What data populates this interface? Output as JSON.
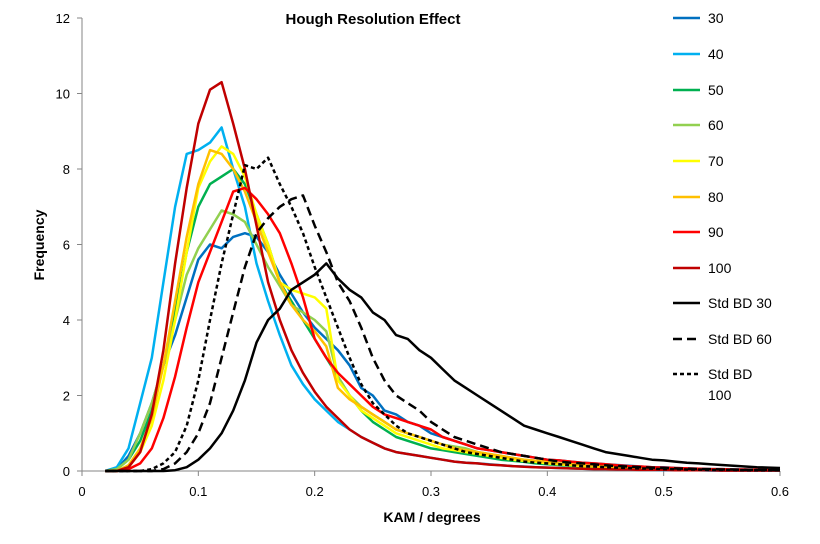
{
  "chart_data": {
    "type": "line",
    "title": "Hough Resolution Effect",
    "xlabel": "KAM / degrees",
    "ylabel": "Frequency",
    "xlim": [
      0,
      0.6
    ],
    "ylim": [
      0,
      12
    ],
    "xticks": [
      "0",
      "0.1",
      "0.2",
      "0.3",
      "0.4",
      "0.5",
      "0.6"
    ],
    "yticks": [
      "0",
      "2",
      "4",
      "6",
      "8",
      "10",
      "12"
    ],
    "grid": false,
    "legend_position": "right",
    "x": [
      0.02,
      0.03,
      0.04,
      0.05,
      0.06,
      0.07,
      0.08,
      0.09,
      0.1,
      0.11,
      0.12,
      0.13,
      0.14,
      0.15,
      0.16,
      0.17,
      0.18,
      0.19,
      0.2,
      0.21,
      0.22,
      0.23,
      0.24,
      0.25,
      0.26,
      0.27,
      0.28,
      0.29,
      0.3,
      0.31,
      0.32,
      0.33,
      0.34,
      0.35,
      0.36,
      0.37,
      0.38,
      0.39,
      0.4,
      0.41,
      0.42,
      0.43,
      0.44,
      0.45,
      0.46,
      0.47,
      0.48,
      0.49,
      0.5,
      0.51,
      0.52,
      0.53,
      0.54,
      0.55,
      0.56,
      0.57,
      0.58,
      0.59,
      0.6
    ],
    "series": [
      {
        "name": "30",
        "color": "#0070C0",
        "dash": "solid",
        "values": [
          0,
          0.05,
          0.4,
          1.0,
          1.8,
          2.8,
          3.6,
          4.6,
          5.6,
          6.0,
          5.9,
          6.2,
          6.3,
          6.2,
          5.8,
          5.2,
          4.7,
          4.2,
          3.8,
          3.5,
          3.2,
          2.8,
          2.2,
          2.0,
          1.6,
          1.5,
          1.3,
          1.2,
          1.0,
          0.9,
          0.8,
          0.7,
          0.6,
          0.55,
          0.5,
          0.45,
          0.4,
          0.35,
          0.3,
          0.28,
          0.25,
          0.22,
          0.2,
          0.18,
          0.16,
          0.14,
          0.12,
          0.1,
          0.1,
          0.08,
          0.07,
          0.06,
          0.05,
          0.05,
          0.04,
          0.04,
          0.03,
          0.03,
          0.02
        ]
      },
      {
        "name": "40",
        "color": "#00B0F0",
        "dash": "solid",
        "values": [
          0,
          0.1,
          0.6,
          1.8,
          3.0,
          5.0,
          7.0,
          8.4,
          8.5,
          8.7,
          9.1,
          8.0,
          7.0,
          5.5,
          4.5,
          3.6,
          2.8,
          2.3,
          1.9,
          1.6,
          1.3,
          1.1,
          0.9,
          0.75,
          0.6,
          0.5,
          0.45,
          0.4,
          0.35,
          0.3,
          0.25,
          0.22,
          0.2,
          0.18,
          0.15,
          0.13,
          0.12,
          0.1,
          0.09,
          0.08,
          0.07,
          0.06,
          0.05,
          0.05,
          0.04,
          0.04,
          0.03,
          0.03,
          0.02,
          0.02,
          0.02,
          0.02,
          0.01,
          0.01,
          0.01,
          0.01,
          0.01,
          0.01,
          0.01
        ]
      },
      {
        "name": "50",
        "color": "#00B050",
        "dash": "solid",
        "values": [
          0,
          0.05,
          0.3,
          0.8,
          1.6,
          2.8,
          4.2,
          5.8,
          7.0,
          7.6,
          7.8,
          8.0,
          7.6,
          6.8,
          6.0,
          5.0,
          4.5,
          4.0,
          3.5,
          3.0,
          2.5,
          2.0,
          1.6,
          1.3,
          1.1,
          0.9,
          0.8,
          0.7,
          0.6,
          0.55,
          0.5,
          0.45,
          0.4,
          0.35,
          0.3,
          0.27,
          0.24,
          0.2,
          0.18,
          0.16,
          0.14,
          0.12,
          0.1,
          0.09,
          0.08,
          0.07,
          0.06,
          0.05,
          0.05,
          0.04,
          0.04,
          0.03,
          0.03,
          0.03,
          0.02,
          0.02,
          0.02,
          0.02,
          0.02
        ]
      },
      {
        "name": "60",
        "color": "#92D050",
        "dash": "solid",
        "values": [
          0,
          0.05,
          0.3,
          1.0,
          1.8,
          2.8,
          4.0,
          5.2,
          5.9,
          6.4,
          6.9,
          6.8,
          6.6,
          6.0,
          5.4,
          4.9,
          4.4,
          4.2,
          4.0,
          3.7,
          2.5,
          2.0,
          1.7,
          1.5,
          1.3,
          1.1,
          1.0,
          0.9,
          0.8,
          0.7,
          0.65,
          0.6,
          0.5,
          0.45,
          0.4,
          0.35,
          0.3,
          0.27,
          0.24,
          0.2,
          0.18,
          0.15,
          0.13,
          0.12,
          0.1,
          0.09,
          0.08,
          0.07,
          0.06,
          0.05,
          0.05,
          0.04,
          0.04,
          0.03,
          0.03,
          0.03,
          0.02,
          0.02,
          0.02
        ]
      },
      {
        "name": "70",
        "color": "#FFFF00",
        "dash": "solid",
        "values": [
          0,
          0,
          0.1,
          0.5,
          1.2,
          2.4,
          4.0,
          5.8,
          7.5,
          8.2,
          8.6,
          8.4,
          7.8,
          6.8,
          6.0,
          5.0,
          4.8,
          4.7,
          4.6,
          4.3,
          2.4,
          2.0,
          1.6,
          1.4,
          1.2,
          1.0,
          0.9,
          0.8,
          0.7,
          0.6,
          0.55,
          0.5,
          0.45,
          0.4,
          0.35,
          0.3,
          0.27,
          0.24,
          0.2,
          0.18,
          0.15,
          0.13,
          0.12,
          0.1,
          0.09,
          0.08,
          0.07,
          0.06,
          0.05,
          0.05,
          0.04,
          0.04,
          0.03,
          0.03,
          0.03,
          0.02,
          0.02,
          0.02,
          0.02
        ]
      },
      {
        "name": "80",
        "color": "#FFC000",
        "dash": "solid",
        "values": [
          0,
          0,
          0.15,
          0.6,
          1.4,
          2.8,
          4.5,
          6.2,
          7.6,
          8.5,
          8.4,
          8.0,
          7.4,
          6.6,
          5.8,
          5.0,
          4.4,
          4.0,
          3.7,
          3.3,
          2.2,
          1.9,
          1.7,
          1.5,
          1.3,
          1.1,
          1.0,
          0.9,
          0.8,
          0.7,
          0.6,
          0.55,
          0.5,
          0.45,
          0.4,
          0.35,
          0.3,
          0.27,
          0.24,
          0.2,
          0.18,
          0.15,
          0.13,
          0.12,
          0.1,
          0.09,
          0.08,
          0.07,
          0.06,
          0.05,
          0.05,
          0.04,
          0.04,
          0.03,
          0.03,
          0.03,
          0.02,
          0.02,
          0.02
        ]
      },
      {
        "name": "90",
        "color": "#FF0000",
        "dash": "solid",
        "values": [
          0,
          0,
          0.05,
          0.2,
          0.6,
          1.4,
          2.5,
          3.8,
          5.0,
          5.8,
          6.6,
          7.4,
          7.5,
          7.2,
          6.8,
          6.3,
          5.5,
          4.6,
          3.5,
          3.0,
          2.6,
          2.3,
          2.0,
          1.7,
          1.5,
          1.4,
          1.3,
          1.2,
          1.1,
          0.9,
          0.8,
          0.7,
          0.6,
          0.55,
          0.5,
          0.45,
          0.4,
          0.35,
          0.3,
          0.28,
          0.25,
          0.22,
          0.2,
          0.18,
          0.15,
          0.13,
          0.12,
          0.1,
          0.09,
          0.08,
          0.07,
          0.06,
          0.05,
          0.05,
          0.04,
          0.04,
          0.03,
          0.03,
          0.03
        ]
      },
      {
        "name": "100",
        "color": "#C00000",
        "dash": "solid",
        "values": [
          0,
          0,
          0.1,
          0.5,
          1.5,
          3.2,
          5.5,
          7.5,
          9.2,
          10.1,
          10.3,
          9.2,
          8.0,
          6.5,
          5.0,
          4.0,
          3.2,
          2.6,
          2.1,
          1.7,
          1.4,
          1.1,
          0.9,
          0.75,
          0.6,
          0.5,
          0.45,
          0.4,
          0.35,
          0.3,
          0.25,
          0.22,
          0.2,
          0.17,
          0.15,
          0.13,
          0.11,
          0.1,
          0.09,
          0.08,
          0.07,
          0.06,
          0.05,
          0.05,
          0.04,
          0.04,
          0.03,
          0.03,
          0.03,
          0.02,
          0.02,
          0.02,
          0.02,
          0.01,
          0.01,
          0.01,
          0.01,
          0.01,
          0.01
        ]
      },
      {
        "name": "Std BD 30",
        "color": "#000000",
        "dash": "solid",
        "values": [
          0,
          0,
          0,
          0,
          0,
          0,
          0.02,
          0.1,
          0.3,
          0.6,
          1.0,
          1.6,
          2.4,
          3.4,
          4.0,
          4.3,
          4.8,
          5.0,
          5.2,
          5.5,
          5.1,
          4.8,
          4.6,
          4.2,
          4.0,
          3.6,
          3.5,
          3.2,
          3.0,
          2.7,
          2.4,
          2.2,
          2.0,
          1.8,
          1.6,
          1.4,
          1.2,
          1.1,
          1.0,
          0.9,
          0.8,
          0.7,
          0.6,
          0.5,
          0.45,
          0.4,
          0.35,
          0.3,
          0.28,
          0.25,
          0.22,
          0.2,
          0.18,
          0.16,
          0.14,
          0.12,
          0.1,
          0.09,
          0.08
        ]
      },
      {
        "name": "Std BD 60",
        "color": "#000000",
        "dash": "long",
        "values": [
          0,
          0,
          0,
          0,
          0,
          0.05,
          0.2,
          0.5,
          1.0,
          1.8,
          3.0,
          4.2,
          5.4,
          6.3,
          6.7,
          7.0,
          7.2,
          7.3,
          6.5,
          5.8,
          5.0,
          4.5,
          3.8,
          3.0,
          2.4,
          2.0,
          1.8,
          1.6,
          1.3,
          1.1,
          0.9,
          0.8,
          0.7,
          0.6,
          0.5,
          0.45,
          0.4,
          0.35,
          0.3,
          0.25,
          0.22,
          0.2,
          0.18,
          0.15,
          0.13,
          0.12,
          0.1,
          0.09,
          0.08,
          0.07,
          0.06,
          0.05,
          0.05,
          0.04,
          0.04,
          0.03,
          0.03,
          0.03,
          0.02
        ]
      },
      {
        "name": "Std BD 100",
        "color": "#000000",
        "dash": "short",
        "values": [
          0,
          0,
          0,
          0,
          0.05,
          0.2,
          0.5,
          1.2,
          2.4,
          4.0,
          5.5,
          6.8,
          8.1,
          8.0,
          8.3,
          7.6,
          7.0,
          6.3,
          5.4,
          4.6,
          3.8,
          3.0,
          2.3,
          1.8,
          1.5,
          1.2,
          1.0,
          0.9,
          0.8,
          0.7,
          0.6,
          0.5,
          0.45,
          0.4,
          0.35,
          0.3,
          0.25,
          0.22,
          0.2,
          0.18,
          0.15,
          0.13,
          0.12,
          0.1,
          0.09,
          0.08,
          0.07,
          0.06,
          0.05,
          0.05,
          0.04,
          0.04,
          0.03,
          0.03,
          0.03,
          0.02,
          0.02,
          0.02,
          0.02
        ]
      }
    ]
  }
}
